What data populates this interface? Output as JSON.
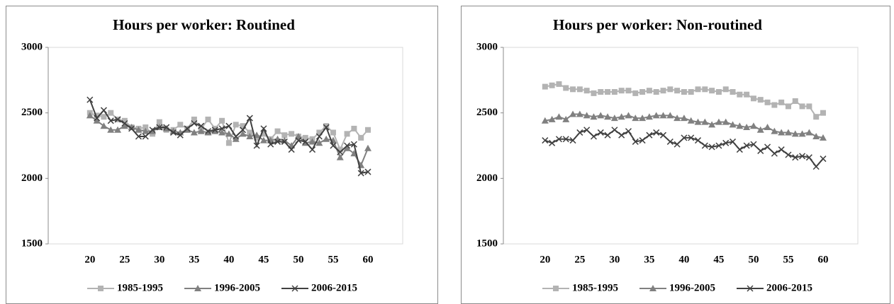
{
  "chart_data": [
    {
      "type": "line",
      "title": "Hours per worker:  Routined",
      "x": [
        20,
        21,
        22,
        23,
        24,
        25,
        26,
        27,
        28,
        29,
        30,
        31,
        32,
        33,
        34,
        35,
        36,
        37,
        38,
        39,
        40,
        41,
        42,
        43,
        44,
        45,
        46,
        47,
        48,
        49,
        50,
        51,
        52,
        53,
        54,
        55,
        56,
        57,
        58,
        59,
        60
      ],
      "xlim": [
        14,
        65
      ],
      "xticks": [
        20,
        25,
        30,
        35,
        40,
        45,
        50,
        55,
        60
      ],
      "ylim": [
        1500,
        3000
      ],
      "yticks": [
        1500,
        2000,
        2500,
        3000
      ],
      "legend": "bottom",
      "series": [
        {
          "name": "1985-1995",
          "color": "#b3b3b3",
          "marker": "square",
          "values": [
            2500,
            2480,
            2470,
            2500,
            2450,
            2440,
            2390,
            2380,
            2390,
            2340,
            2430,
            2370,
            2370,
            2410,
            2380,
            2450,
            2380,
            2450,
            2380,
            2440,
            2270,
            2410,
            2400,
            2350,
            2310,
            2340,
            2300,
            2360,
            2330,
            2340,
            2320,
            2310,
            2300,
            2350,
            2400,
            2350,
            2220,
            2340,
            2380,
            2310,
            2370
          ]
        },
        {
          "name": "1996-2005",
          "color": "#808080",
          "marker": "triangle",
          "values": [
            2480,
            2440,
            2400,
            2370,
            2370,
            2400,
            2390,
            2370,
            2360,
            2360,
            2390,
            2380,
            2360,
            2350,
            2370,
            2350,
            2360,
            2350,
            2360,
            2350,
            2340,
            2300,
            2340,
            2320,
            2330,
            2290,
            2290,
            2300,
            2290,
            2250,
            2320,
            2270,
            2280,
            2270,
            2300,
            2290,
            2160,
            2230,
            2190,
            2100,
            2230
          ]
        },
        {
          "name": "2006-2015",
          "color": "#404040",
          "marker": "cross",
          "values": [
            2600,
            2460,
            2520,
            2440,
            2450,
            2420,
            2380,
            2320,
            2320,
            2370,
            2390,
            2390,
            2350,
            2330,
            2380,
            2420,
            2400,
            2360,
            2370,
            2380,
            2400,
            2320,
            2370,
            2460,
            2250,
            2380,
            2260,
            2280,
            2280,
            2220,
            2290,
            2280,
            2220,
            2320,
            2390,
            2250,
            2200,
            2250,
            2260,
            2040,
            2050
          ]
        }
      ]
    },
    {
      "type": "line",
      "title": "Hours per worker:  Non-routined",
      "x": [
        20,
        21,
        22,
        23,
        24,
        25,
        26,
        27,
        28,
        29,
        30,
        31,
        32,
        33,
        34,
        35,
        36,
        37,
        38,
        39,
        40,
        41,
        42,
        43,
        44,
        45,
        46,
        47,
        48,
        49,
        50,
        51,
        52,
        53,
        54,
        55,
        56,
        57,
        58,
        59,
        60
      ],
      "xlim": [
        14,
        65
      ],
      "xticks": [
        20,
        25,
        30,
        35,
        40,
        45,
        50,
        55,
        60
      ],
      "ylim": [
        1500,
        3000
      ],
      "yticks": [
        1500,
        2000,
        2500,
        3000
      ],
      "legend": "bottom",
      "series": [
        {
          "name": "1985-1995",
          "color": "#b3b3b3",
          "marker": "square",
          "values": [
            2700,
            2710,
            2720,
            2690,
            2680,
            2680,
            2670,
            2650,
            2660,
            2660,
            2660,
            2670,
            2670,
            2650,
            2660,
            2670,
            2660,
            2670,
            2680,
            2670,
            2660,
            2660,
            2680,
            2680,
            2670,
            2660,
            2680,
            2660,
            2640,
            2640,
            2610,
            2600,
            2580,
            2560,
            2580,
            2550,
            2590,
            2550,
            2550,
            2470,
            2500
          ]
        },
        {
          "name": "1996-2005",
          "color": "#808080",
          "marker": "triangle",
          "values": [
            2440,
            2450,
            2470,
            2450,
            2490,
            2490,
            2480,
            2470,
            2480,
            2470,
            2460,
            2470,
            2480,
            2460,
            2460,
            2470,
            2480,
            2480,
            2480,
            2460,
            2460,
            2440,
            2430,
            2430,
            2410,
            2430,
            2430,
            2410,
            2400,
            2390,
            2400,
            2370,
            2390,
            2360,
            2350,
            2350,
            2340,
            2340,
            2350,
            2320,
            2310
          ]
        },
        {
          "name": "2006-2015",
          "color": "#404040",
          "marker": "cross",
          "values": [
            2290,
            2270,
            2300,
            2300,
            2290,
            2350,
            2370,
            2320,
            2350,
            2330,
            2370,
            2330,
            2360,
            2280,
            2290,
            2330,
            2350,
            2330,
            2280,
            2260,
            2310,
            2310,
            2290,
            2250,
            2240,
            2250,
            2270,
            2280,
            2220,
            2250,
            2260,
            2210,
            2240,
            2190,
            2220,
            2180,
            2160,
            2170,
            2160,
            2090,
            2150
          ]
        }
      ]
    }
  ]
}
